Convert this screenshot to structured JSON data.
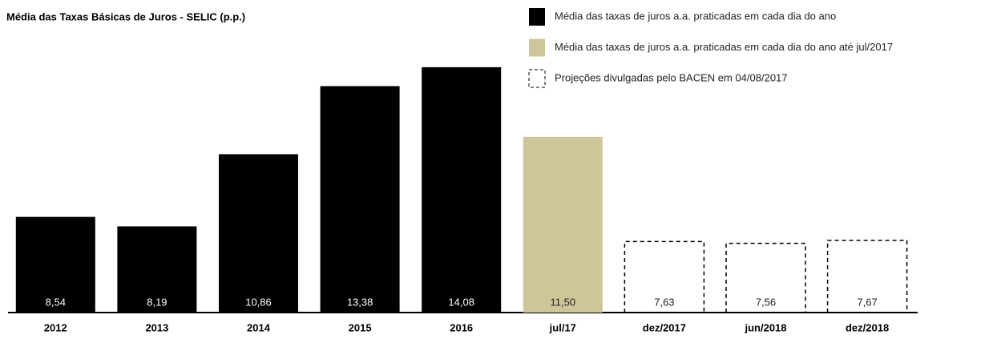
{
  "chart_data": {
    "type": "bar",
    "title": "Média das Taxas Básicas de Juros - SELIC (p.p.)",
    "categories": [
      "2012",
      "2013",
      "2014",
      "2015",
      "2016",
      "jul/17",
      "dez/2017",
      "jun/2018",
      "dez/2018"
    ],
    "series": [
      {
        "name": "Média das taxas de juros a.a. praticadas em cada dia do ano",
        "color": "#000000",
        "values": [
          8.54,
          8.19,
          10.86,
          13.38,
          14.08,
          null,
          null,
          null,
          null
        ],
        "value_labels": [
          "8,54",
          "8,19",
          "10,86",
          "13,38",
          "14,08",
          null,
          null,
          null,
          null
        ]
      },
      {
        "name": "Média das taxas de juros a.a. praticadas em cada dia do ano até jul/2017",
        "color": "#cfc59a",
        "values": [
          null,
          null,
          null,
          null,
          null,
          11.5,
          null,
          null,
          null
        ],
        "value_labels": [
          null,
          null,
          null,
          null,
          null,
          "11,50",
          null,
          null,
          null
        ]
      },
      {
        "name": "Projeções divulgadas pelo BACEN em 04/08/2017",
        "color": "#000000",
        "dashed": true,
        "values": [
          null,
          null,
          null,
          null,
          null,
          null,
          7.63,
          7.56,
          7.67
        ],
        "value_labels": [
          null,
          null,
          null,
          null,
          null,
          null,
          "7,63",
          "7,56",
          "7,67"
        ]
      }
    ],
    "ylim": [
      5,
      16.3
    ]
  }
}
